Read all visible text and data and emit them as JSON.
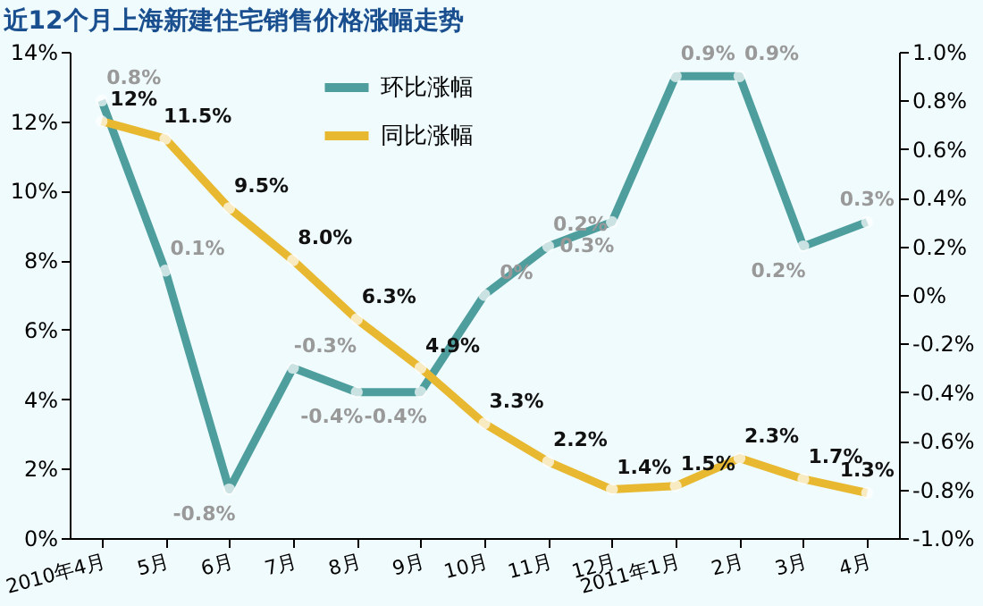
{
  "chart_data": {
    "type": "line",
    "title": "近12个月上海新建住宅销售价格涨幅走势",
    "categories": [
      "2010年4月",
      "5月",
      "6月",
      "7月",
      "8月",
      "9月",
      "10月",
      "11月",
      "12月",
      "2011年1月",
      "2月",
      "3月",
      "4月"
    ],
    "series": [
      {
        "name": "环比涨幅",
        "color": "#4e9e9e",
        "axis": "y2",
        "values": [
          0.8,
          0.1,
          -0.8,
          -0.3,
          -0.4,
          -0.4,
          0,
          0.2,
          0.3,
          0.9,
          0.9,
          0.2,
          0.3
        ],
        "value_labels": [
          "0.8%",
          "0.1%",
          "-0.8%",
          "-0.3%",
          "-0.4%",
          "-0.4%",
          "0%",
          "0.2%",
          "0.3%",
          "0.9%",
          "0.9%",
          "0.2%",
          "0.3%"
        ]
      },
      {
        "name": "同比涨幅",
        "color": "#e8b830",
        "values": [
          12,
          11.5,
          9.5,
          8.0,
          6.3,
          4.9,
          3.3,
          2.2,
          1.4,
          1.5,
          2.3,
          1.7,
          1.3
        ],
        "value_labels": [
          "12%",
          "11.5%",
          "9.5%",
          "8.0%",
          "6.3%",
          "4.9%",
          "3.3%",
          "2.2%",
          "1.4%",
          "1.5%",
          "2.3%",
          "1.7%",
          "1.3%"
        ]
      }
    ],
    "ylim": [
      0,
      14
    ],
    "yticks": [
      {
        "value": 0,
        "label": "0%"
      },
      {
        "value": 2,
        "label": "2%"
      },
      {
        "value": 4,
        "label": "4%"
      },
      {
        "value": 6,
        "label": "6%"
      },
      {
        "value": 8,
        "label": "8%"
      },
      {
        "value": 10,
        "label": "10%"
      },
      {
        "value": 12,
        "label": "12%"
      },
      {
        "value": 14,
        "label": "14%"
      }
    ],
    "y2lim": [
      -1.0,
      1.0
    ],
    "y2ticks": [
      {
        "value": -1.0,
        "label": "-1.0%"
      },
      {
        "value": -0.8,
        "label": "-0.8%"
      },
      {
        "value": -0.6,
        "label": "-0.6%"
      },
      {
        "value": -0.4,
        "label": "-0.4%"
      },
      {
        "value": -0.2,
        "label": "-0.2%"
      },
      {
        "value": 0,
        "label": "0%"
      },
      {
        "value": 0.2,
        "label": "0.2%"
      },
      {
        "value": 0.4,
        "label": "0.4%"
      },
      {
        "value": 0.6,
        "label": "0.6%"
      },
      {
        "value": 0.8,
        "label": "0.8%"
      },
      {
        "value": 1.0,
        "label": "1.0%"
      }
    ],
    "legend": "top",
    "marker": "circle",
    "line_style": "solid",
    "grid": false
  }
}
